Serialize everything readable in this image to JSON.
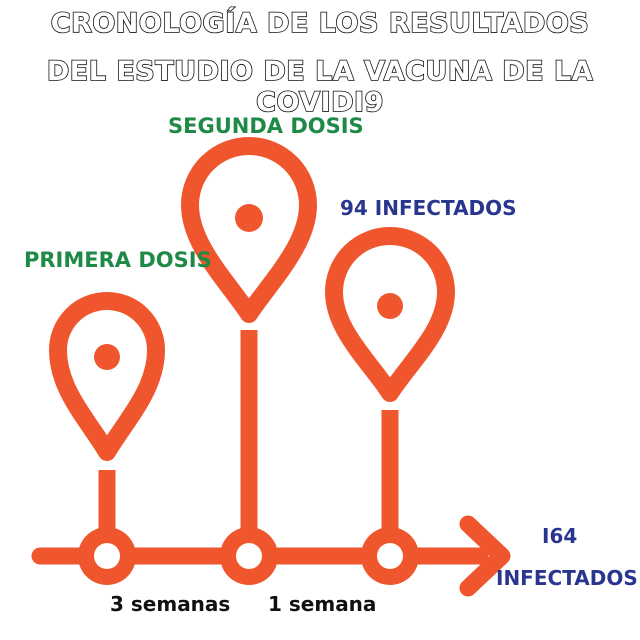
{
  "title": {
    "line1": "CRONOLOGÍA DE  LOS RESULTADOS",
    "line2": "DEL ESTUDIO DE LA VACUNA DE LA COVIDI9"
  },
  "markers": [
    {
      "label": "PRIMERA DOSIS",
      "icon": "map-pin-icon"
    },
    {
      "label": "SEGUNDA DOSIS",
      "icon": "map-pin-icon"
    },
    {
      "label": "94 INFECTADOS",
      "icon": "map-pin-icon"
    }
  ],
  "end_label": {
    "line1": "I64",
    "line2": "INFECTADOS"
  },
  "intervals": [
    "3 semanas",
    "1 semana"
  ],
  "colors": {
    "line": "#f0562d",
    "green_text": "#1f8a48",
    "blue_text": "#2a3590",
    "title_outline": "#111111"
  }
}
